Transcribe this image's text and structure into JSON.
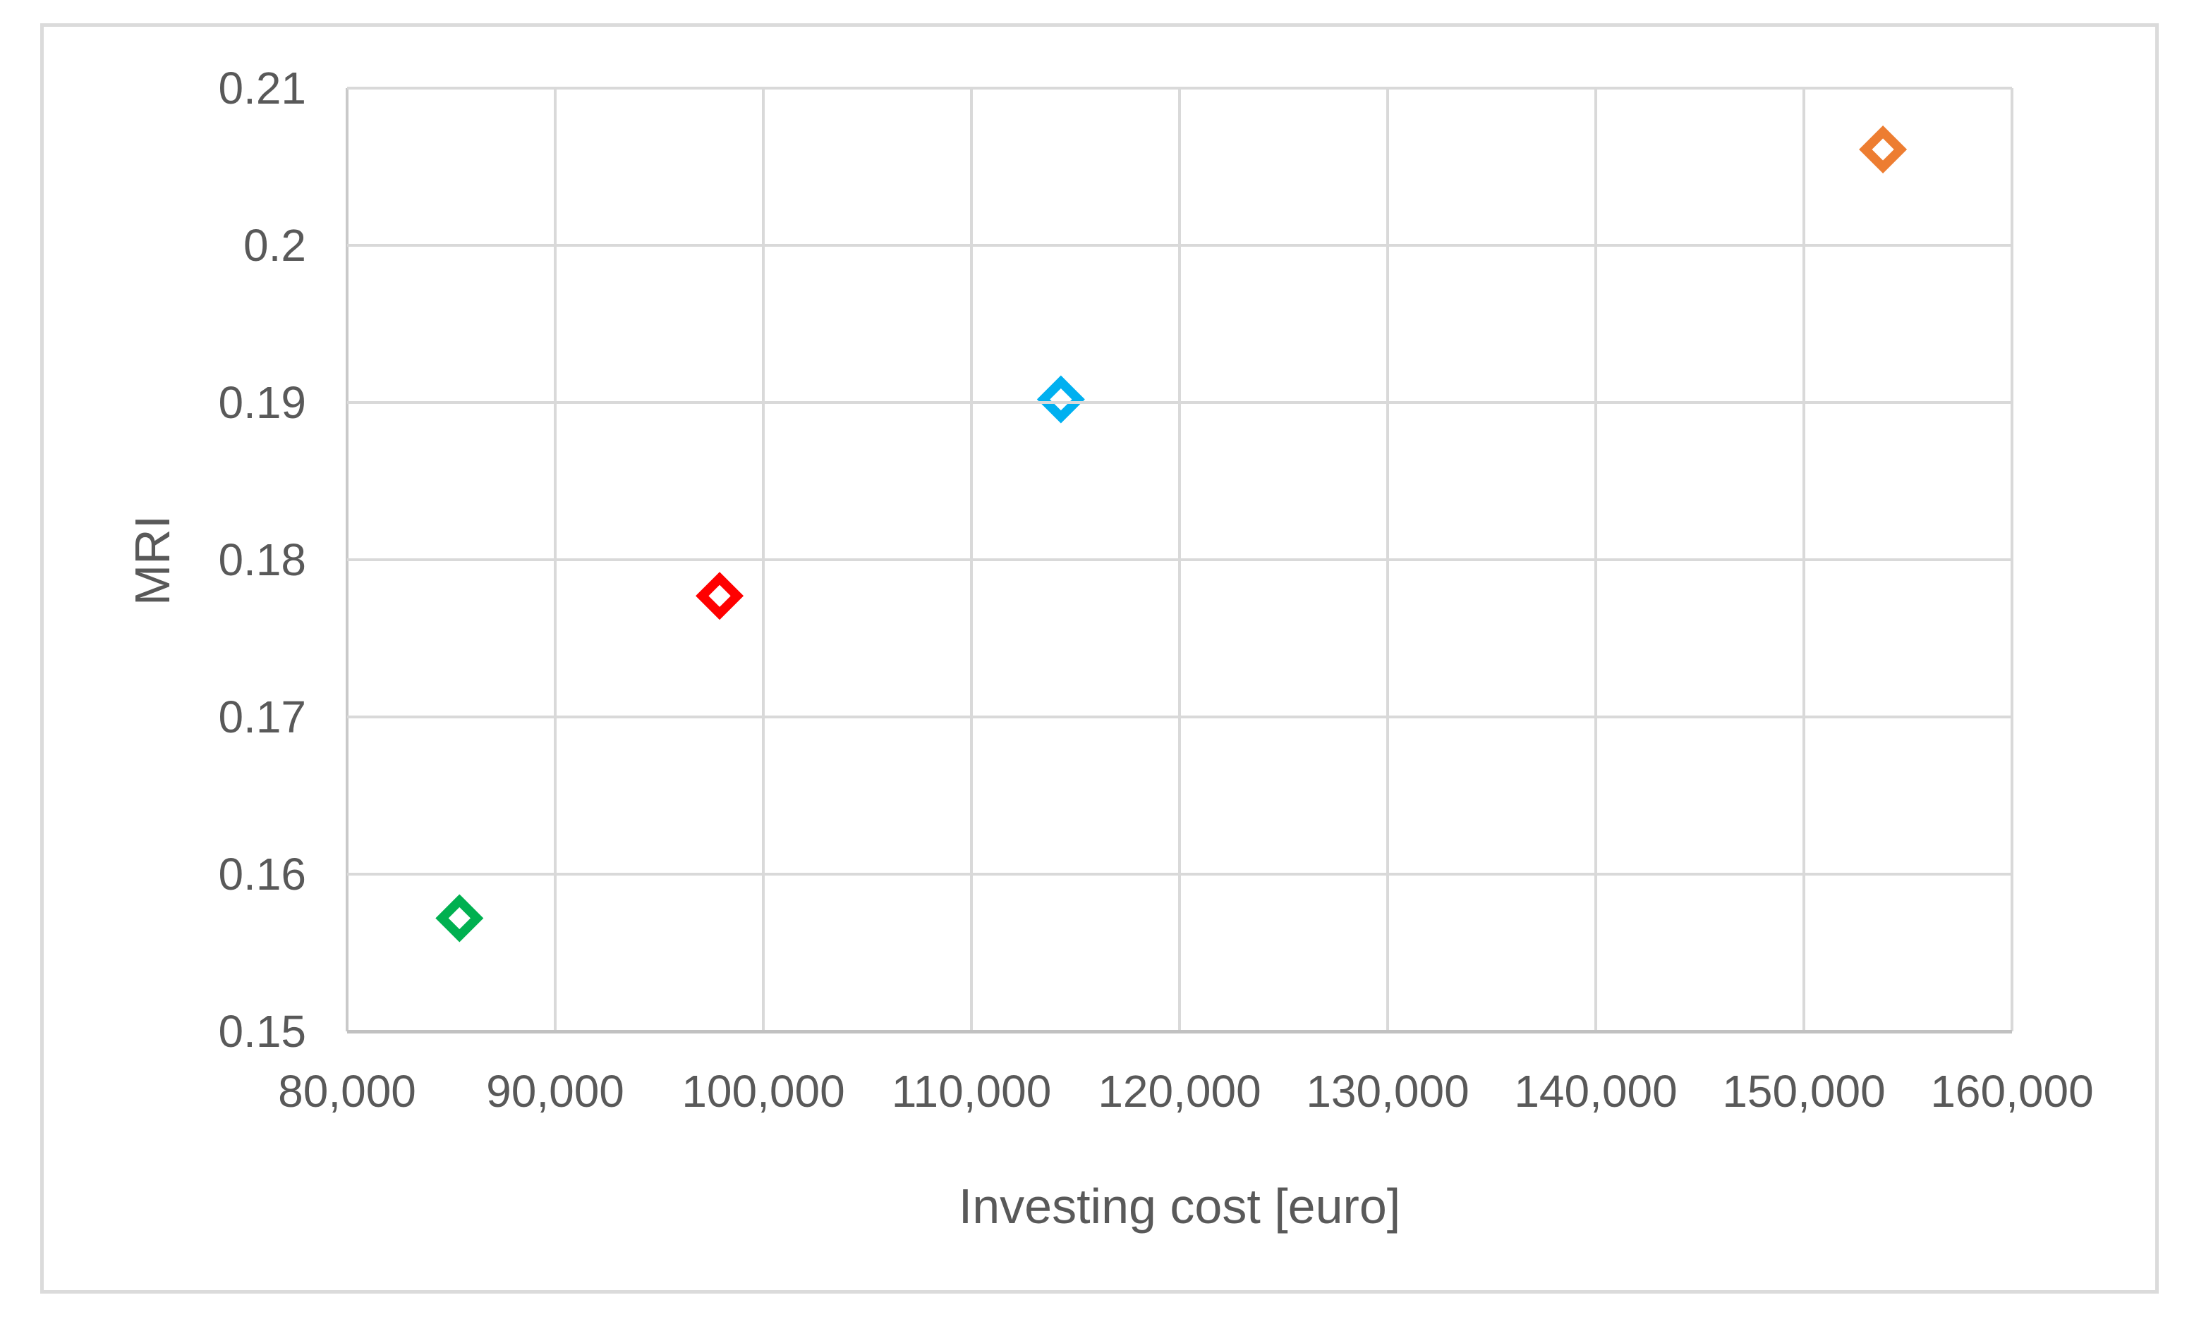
{
  "figure": {
    "background_color": "#FFFFFF",
    "border_color": "#DBDBDB"
  },
  "chart_data": {
    "type": "scatter",
    "title": "",
    "xlabel": "Investing cost [euro]",
    "ylabel": "MRI",
    "grid": true,
    "legend": false,
    "text_color": "#595959",
    "gridline_color": "#D9D9D9",
    "axis_line_color": "#C1C1C1",
    "x_axis": {
      "min": 80000,
      "max": 160000,
      "tick_step": 10000,
      "tick_labels": [
        "80,000",
        "90,000",
        "100,000",
        "110,000",
        "120,000",
        "130,000",
        "140,000",
        "150,000",
        "160,000"
      ]
    },
    "y_axis": {
      "min": 0.15,
      "max": 0.21,
      "tick_step": 0.01,
      "tick_labels": [
        "0.15",
        "0.16",
        "0.17",
        "0.18",
        "0.19",
        "0.2",
        "0.21"
      ]
    },
    "marker": {
      "shape": "hollow-diamond",
      "outer_size_px": 68,
      "stroke_width_px": 13,
      "fill": "#FFFFFF"
    },
    "series": [
      {
        "name": "green",
        "color": "#00B050",
        "points": [
          {
            "x": 85400,
            "y": 0.1572
          }
        ]
      },
      {
        "name": "red",
        "color": "#FF0000",
        "points": [
          {
            "x": 97900,
            "y": 0.1777
          }
        ]
      },
      {
        "name": "blue",
        "color": "#00B0F0",
        "points": [
          {
            "x": 114300,
            "y": 0.1902
          }
        ]
      },
      {
        "name": "orange",
        "color": "#ED7D31",
        "points": [
          {
            "x": 153800,
            "y": 0.2061
          }
        ]
      }
    ]
  }
}
